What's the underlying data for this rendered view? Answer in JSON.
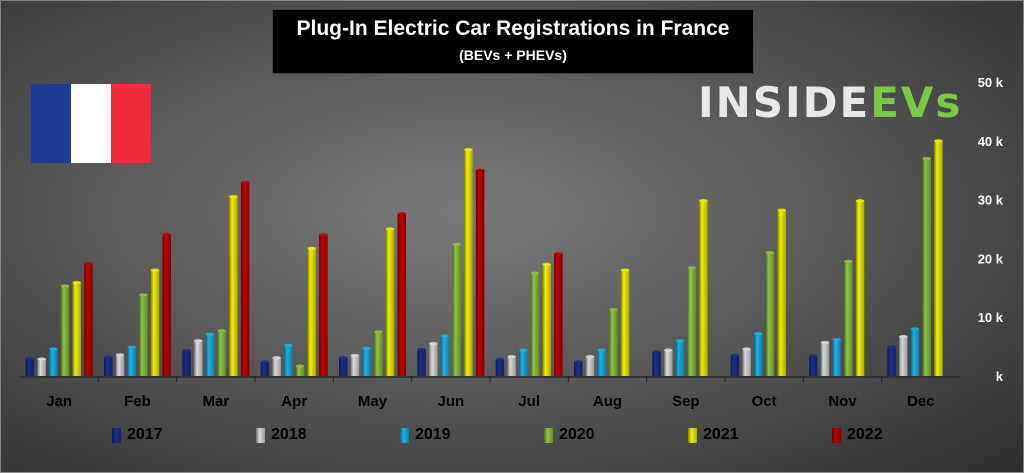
{
  "title": "Plug-In Electric Car Registrations in France",
  "subtitle": "(BEVs + PHEVs)",
  "logo": {
    "part1": "INSIDE",
    "part2": "EVs",
    "accent": "#7ac943"
  },
  "flag": {
    "colors": [
      "#1f3a93",
      "#ffffff",
      "#ef2b3d"
    ]
  },
  "chart_data": {
    "type": "bar",
    "title": "Plug-In Electric Car Registrations in France",
    "subtitle": "(BEVs + PHEVs)",
    "categories": [
      "Jan",
      "Feb",
      "Mar",
      "Apr",
      "May",
      "Jun",
      "Jul",
      "Aug",
      "Sep",
      "Oct",
      "Nov",
      "Dec"
    ],
    "series": [
      {
        "name": "2017",
        "color": "#1b2f8c",
        "values": [
          3000,
          3200,
          4300,
          2400,
          3100,
          4500,
          2800,
          2400,
          4100,
          3500,
          3400,
          5000
        ]
      },
      {
        "name": "2018",
        "color": "#d9d9d9",
        "values": [
          2900,
          3600,
          6000,
          3100,
          3500,
          5500,
          3300,
          3300,
          4400,
          4600,
          5700,
          6700
        ]
      },
      {
        "name": "2019",
        "color": "#19b2e6",
        "values": [
          4600,
          4900,
          7100,
          5200,
          4700,
          6800,
          4400,
          4400,
          6000,
          7200,
          6200,
          8000
        ]
      },
      {
        "name": "2020",
        "color": "#8fc43f",
        "values": [
          15300,
          13800,
          7700,
          1700,
          7500,
          22400,
          17500,
          11300,
          18400,
          21000,
          19500,
          37000
        ]
      },
      {
        "name": "2021",
        "color": "#f0f000",
        "values": [
          15900,
          18000,
          30500,
          21700,
          25000,
          38500,
          19000,
          18000,
          29800,
          28200,
          29800,
          40000
        ]
      },
      {
        "name": "2022",
        "color": "#c00000",
        "values": [
          19100,
          24100,
          32900,
          24000,
          27600,
          35000,
          20800,
          null,
          null,
          null,
          null,
          null
        ]
      }
    ],
    "yaxis": {
      "ylim": [
        0,
        50000
      ],
      "ticks": [
        "k",
        "10 k",
        "20 k",
        "30 k",
        "40 k",
        "50 k"
      ],
      "position": "right"
    },
    "legend": {
      "position": "bottom"
    }
  }
}
